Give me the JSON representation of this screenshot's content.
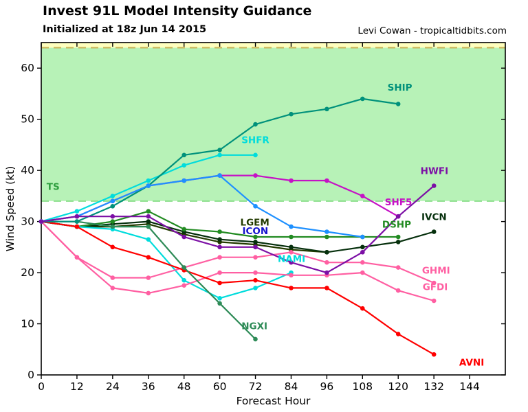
{
  "chart_data": {
    "type": "line",
    "title": "Invest 91L Model Intensity Guidance",
    "subtitle": "Initialized at 18z Jun 14 2015",
    "credit": "Levi Cowan - tropicaltidbits.com",
    "xlabel": "Forecast Hour",
    "ylabel": "Wind Speed (kt)",
    "xlim": [
      0,
      156
    ],
    "ylim": [
      0,
      65
    ],
    "xticks": [
      0,
      12,
      24,
      36,
      48,
      60,
      72,
      84,
      96,
      108,
      120,
      132,
      144
    ],
    "yticks": [
      0,
      10,
      20,
      30,
      40,
      50,
      60
    ],
    "grid": false,
    "legend_position": "inline-labels",
    "bands": [
      {
        "name": "ts-band",
        "from": 34,
        "to": 64,
        "fill": "#b7f2b7"
      },
      {
        "name": "hurricane-band",
        "from": 64,
        "to": 65,
        "fill": "#ffffbe"
      }
    ],
    "edge_lines": [
      {
        "name": "hurricane-threshold",
        "value": 64,
        "color": "#c9b458"
      },
      {
        "name": "ts-threshold",
        "value": 34,
        "color": "#8fdf8f"
      }
    ],
    "band_labels": [
      {
        "text": "TS",
        "x": 1.8,
        "y": 36.2,
        "color": "#2e9e3e"
      }
    ],
    "series": [
      {
        "name": "SHF5",
        "color": "#c513c5",
        "label_color": "#c513c5",
        "label": {
          "x": 115.5,
          "y": 33.2
        },
        "points": [
          [
            0,
            30
          ],
          [
            12,
            31
          ],
          [
            24,
            34
          ],
          [
            36,
            37
          ],
          [
            48,
            38
          ],
          [
            60,
            39
          ],
          [
            72,
            39
          ],
          [
            84,
            38
          ],
          [
            96,
            38
          ],
          [
            108,
            35
          ],
          [
            120,
            31
          ]
        ]
      },
      {
        "name": "LGEM",
        "color": "#233b00",
        "label_color": "#233b00",
        "label": {
          "x": 66.9,
          "y": 29.2
        },
        "points": [
          [
            0,
            30
          ],
          [
            12,
            29
          ],
          [
            24,
            29
          ],
          [
            36,
            29.5
          ],
          [
            48,
            27.5
          ],
          [
            60,
            26
          ],
          [
            72,
            25.5
          ],
          [
            84,
            24.5
          ],
          [
            96,
            24
          ]
        ]
      },
      {
        "name": "IVCN",
        "color": "#06300d",
        "label_color": "#06300d",
        "label": {
          "x": 127.8,
          "y": 30.3
        },
        "points": [
          [
            0,
            30
          ],
          [
            12,
            29
          ],
          [
            24,
            29.5
          ],
          [
            36,
            30
          ],
          [
            48,
            28
          ],
          [
            60,
            26.5
          ],
          [
            72,
            26
          ],
          [
            84,
            25
          ],
          [
            96,
            24
          ],
          [
            108,
            25
          ],
          [
            120,
            26
          ],
          [
            132,
            28
          ]
        ]
      },
      {
        "name": "DSHP",
        "color": "#228b22",
        "label_color": "#228b22",
        "label": {
          "x": 114.6,
          "y": 28.8
        },
        "points": [
          [
            0,
            30
          ],
          [
            12,
            29
          ],
          [
            24,
            30
          ],
          [
            36,
            32
          ],
          [
            48,
            28.5
          ],
          [
            60,
            28
          ],
          [
            72,
            27
          ],
          [
            84,
            27
          ],
          [
            96,
            27
          ],
          [
            108,
            27
          ],
          [
            120,
            27
          ]
        ]
      },
      {
        "name": "NAMI",
        "color": "#00dcdc",
        "label_color": "#00dcdc",
        "label": {
          "x": 79.5,
          "y": 22.1
        },
        "points": [
          [
            0,
            30
          ],
          [
            12,
            29
          ],
          [
            24,
            28.5
          ],
          [
            36,
            26.5
          ],
          [
            48,
            18.5
          ],
          [
            60,
            15
          ],
          [
            72,
            17
          ],
          [
            84,
            20
          ]
        ]
      },
      {
        "name": "GFDI",
        "color": "#ff5fa2",
        "label_color": "#ff5fa2",
        "label": {
          "x": 128.2,
          "y": 16.6
        },
        "points": [
          [
            0,
            30
          ],
          [
            12,
            23
          ],
          [
            24,
            17
          ],
          [
            36,
            16
          ],
          [
            48,
            17.5
          ],
          [
            60,
            20
          ],
          [
            72,
            20
          ],
          [
            84,
            19.5
          ],
          [
            96,
            19.5
          ],
          [
            108,
            20
          ],
          [
            120,
            16.5
          ],
          [
            132,
            14.5
          ]
        ]
      },
      {
        "name": "GHMI",
        "color": "#ff5fa2",
        "label_color": "#ff5fa2",
        "label": {
          "x": 128.0,
          "y": 19.8
        },
        "points": [
          [
            0,
            30
          ],
          [
            12,
            23
          ],
          [
            24,
            19
          ],
          [
            36,
            19
          ],
          [
            48,
            21
          ],
          [
            60,
            23
          ],
          [
            72,
            23
          ],
          [
            84,
            24
          ],
          [
            96,
            22
          ],
          [
            108,
            22
          ],
          [
            120,
            21
          ],
          [
            132,
            18
          ]
        ]
      },
      {
        "name": "AVNI",
        "color": "#ff0000",
        "label_color": "#ff0000",
        "label": {
          "x": 140.5,
          "y": 1.8
        },
        "points": [
          [
            0,
            30
          ],
          [
            12,
            29
          ],
          [
            24,
            25
          ],
          [
            36,
            23
          ],
          [
            48,
            20.5
          ],
          [
            60,
            18
          ],
          [
            72,
            18.5
          ],
          [
            84,
            17
          ],
          [
            96,
            17
          ],
          [
            108,
            13
          ],
          [
            120,
            8
          ],
          [
            132,
            4
          ]
        ]
      },
      {
        "name": "NGXI",
        "color": "#2e8b57",
        "label_color": "#2e8b57",
        "label": {
          "x": 67.3,
          "y": 8.9
        },
        "points": [
          [
            0,
            30
          ],
          [
            12,
            30
          ],
          [
            24,
            29
          ],
          [
            36,
            29
          ],
          [
            48,
            21
          ],
          [
            60,
            14
          ],
          [
            72,
            7
          ]
        ]
      },
      {
        "name": "SHFR",
        "color": "#00dcdc",
        "label_color": "#00dcdc",
        "label": {
          "x": 67.3,
          "y": 45.3
        },
        "points": [
          [
            0,
            30
          ],
          [
            12,
            32
          ],
          [
            24,
            35
          ],
          [
            36,
            38
          ],
          [
            48,
            41
          ],
          [
            60,
            43
          ],
          [
            72,
            43
          ]
        ]
      },
      {
        "name": "SHIP",
        "color": "#00917b",
        "label_color": "#00917b",
        "label": {
          "x": 116.4,
          "y": 55.6
        },
        "points": [
          [
            0,
            30
          ],
          [
            12,
            30
          ],
          [
            24,
            33
          ],
          [
            36,
            37
          ],
          [
            48,
            43
          ],
          [
            60,
            44
          ],
          [
            72,
            49
          ],
          [
            84,
            51
          ],
          [
            96,
            52
          ],
          [
            108,
            54
          ],
          [
            120,
            53
          ]
        ]
      },
      {
        "name": "ICON",
        "color": "#1e90ff",
        "label_color": "#1414cc",
        "label": {
          "x": 67.6,
          "y": 27.5
        },
        "points": [
          [
            0,
            30
          ],
          [
            12,
            31
          ],
          [
            24,
            34
          ],
          [
            36,
            37
          ],
          [
            48,
            38
          ],
          [
            60,
            39
          ],
          [
            72,
            33
          ],
          [
            84,
            29
          ],
          [
            96,
            28
          ],
          [
            108,
            27
          ]
        ]
      },
      {
        "name": "HWFI",
        "color": "#7c0fa5",
        "label_color": "#7c0fa5",
        "label": {
          "x": 127.5,
          "y": 39.3
        },
        "points": [
          [
            0,
            30
          ],
          [
            12,
            31
          ],
          [
            24,
            31
          ],
          [
            36,
            31
          ],
          [
            48,
            27
          ],
          [
            60,
            25
          ],
          [
            72,
            25
          ],
          [
            84,
            22
          ],
          [
            96,
            20
          ],
          [
            108,
            24
          ],
          [
            120,
            31
          ],
          [
            132,
            37
          ]
        ]
      }
    ]
  }
}
